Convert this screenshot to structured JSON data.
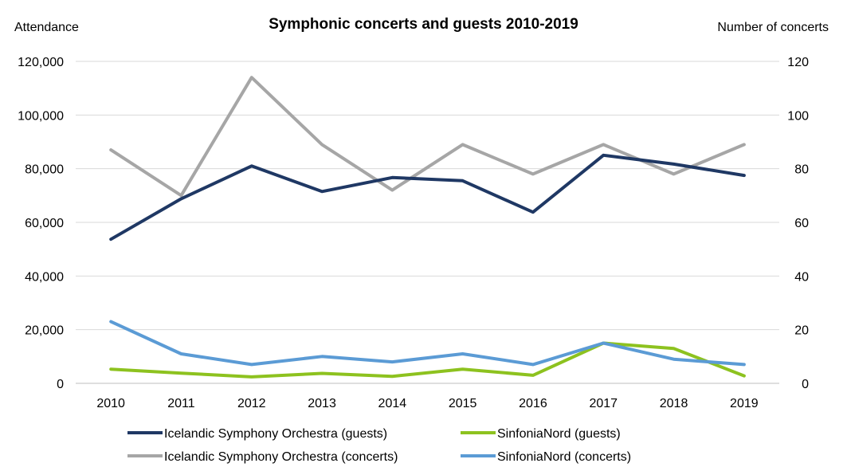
{
  "chart_data": {
    "type": "line",
    "title": "Symphonic concerts and guests 2010-2019",
    "ylabel_left": "Attendance",
    "ylabel_right": "Number of concerts",
    "x": [
      "2010",
      "2011",
      "2012",
      "2013",
      "2014",
      "2015",
      "2016",
      "2017",
      "2018",
      "2019"
    ],
    "ylim_left": [
      0,
      120000
    ],
    "ylim_right": [
      0,
      120
    ],
    "y_ticks_left": [
      "0",
      "20,000",
      "40,000",
      "60,000",
      "80,000",
      "100,000",
      "120,000"
    ],
    "y_ticks_right": [
      "0",
      "20",
      "40",
      "60",
      "80",
      "100",
      "120"
    ],
    "grid": true,
    "legend_position": "bottom",
    "series": [
      {
        "name": "Icelandic Symphony Orchestra (guests)",
        "axis": "left",
        "color": "#1f3864",
        "values": [
          53700,
          68800,
          81000,
          71500,
          76700,
          75500,
          63800,
          85000,
          81700,
          77500
        ]
      },
      {
        "name": "Icelandic Symphony Orchestra (concerts)",
        "axis": "right",
        "color": "#a6a6a6",
        "values": [
          87,
          70,
          114,
          89,
          72,
          89,
          78,
          89,
          78,
          89
        ]
      },
      {
        "name": "SinfoniaNord (guests)",
        "axis": "left",
        "color": "#8dc21f",
        "values": [
          5300,
          3800,
          2400,
          3700,
          2600,
          5300,
          3000,
          15000,
          13000,
          2800
        ]
      },
      {
        "name": "SinfoniaNord (concerts)",
        "axis": "right",
        "color": "#5b9bd5",
        "values": [
          23,
          11,
          7,
          10,
          8,
          11,
          7,
          15,
          9,
          7
        ]
      }
    ]
  }
}
